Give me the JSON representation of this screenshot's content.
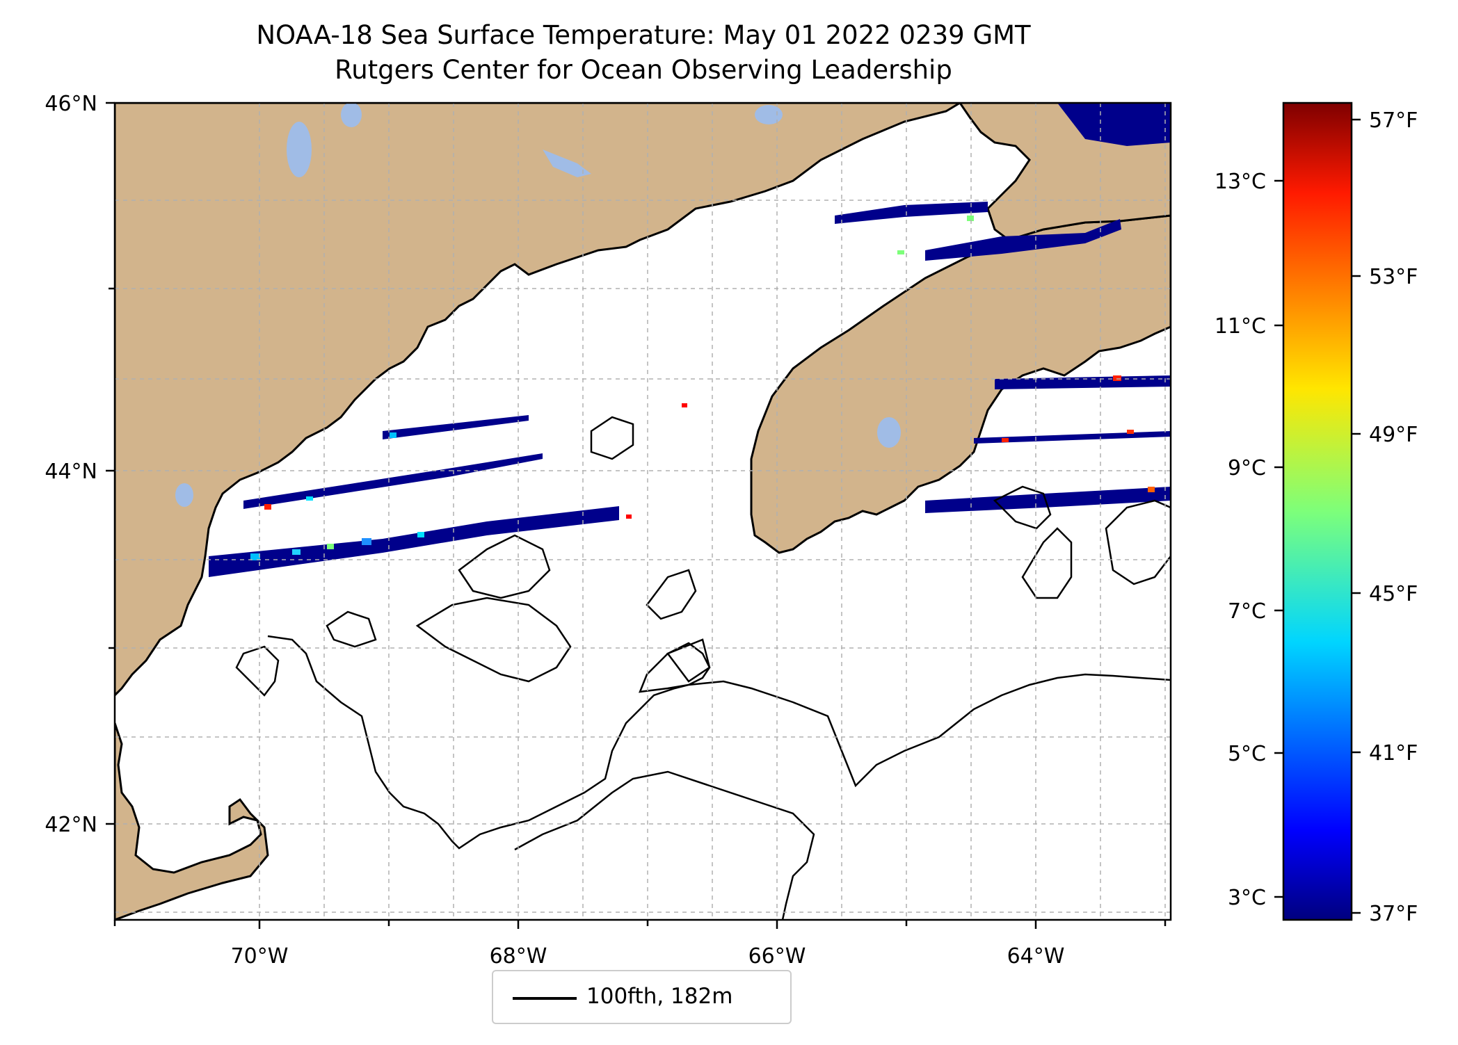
{
  "header": {
    "title": "NOAA-18 Sea Surface Temperature: May 01 2022 0239 GMT",
    "subtitle": "Rutgers Center for Ocean Observing Leadership"
  },
  "map": {
    "lon_ticks": [
      "70°W",
      "68°W",
      "66°W",
      "64°W"
    ],
    "lat_ticks": [
      "46°N",
      "44°N",
      "42°N"
    ],
    "lon_range": [
      -71.1,
      -62.9
    ],
    "lat_range": [
      41.5,
      46.0
    ],
    "grid": true,
    "land_color": "#d2b48c",
    "lake_color": "#a0bce6",
    "sst_low_color": "#00008b"
  },
  "legend": {
    "label": "100fth, 182m",
    "placement": "bottom-center"
  },
  "colorbar": {
    "celsius_ticks": [
      "13°C",
      "11°C",
      "9°C",
      "7°C",
      "5°C",
      "3°C"
    ],
    "fahrenheit_ticks": [
      "57°F",
      "53°F",
      "49°F",
      "45°F",
      "41°F",
      "37°F"
    ],
    "colormap": "jet",
    "range_f": [
      36.5,
      58
    ]
  }
}
